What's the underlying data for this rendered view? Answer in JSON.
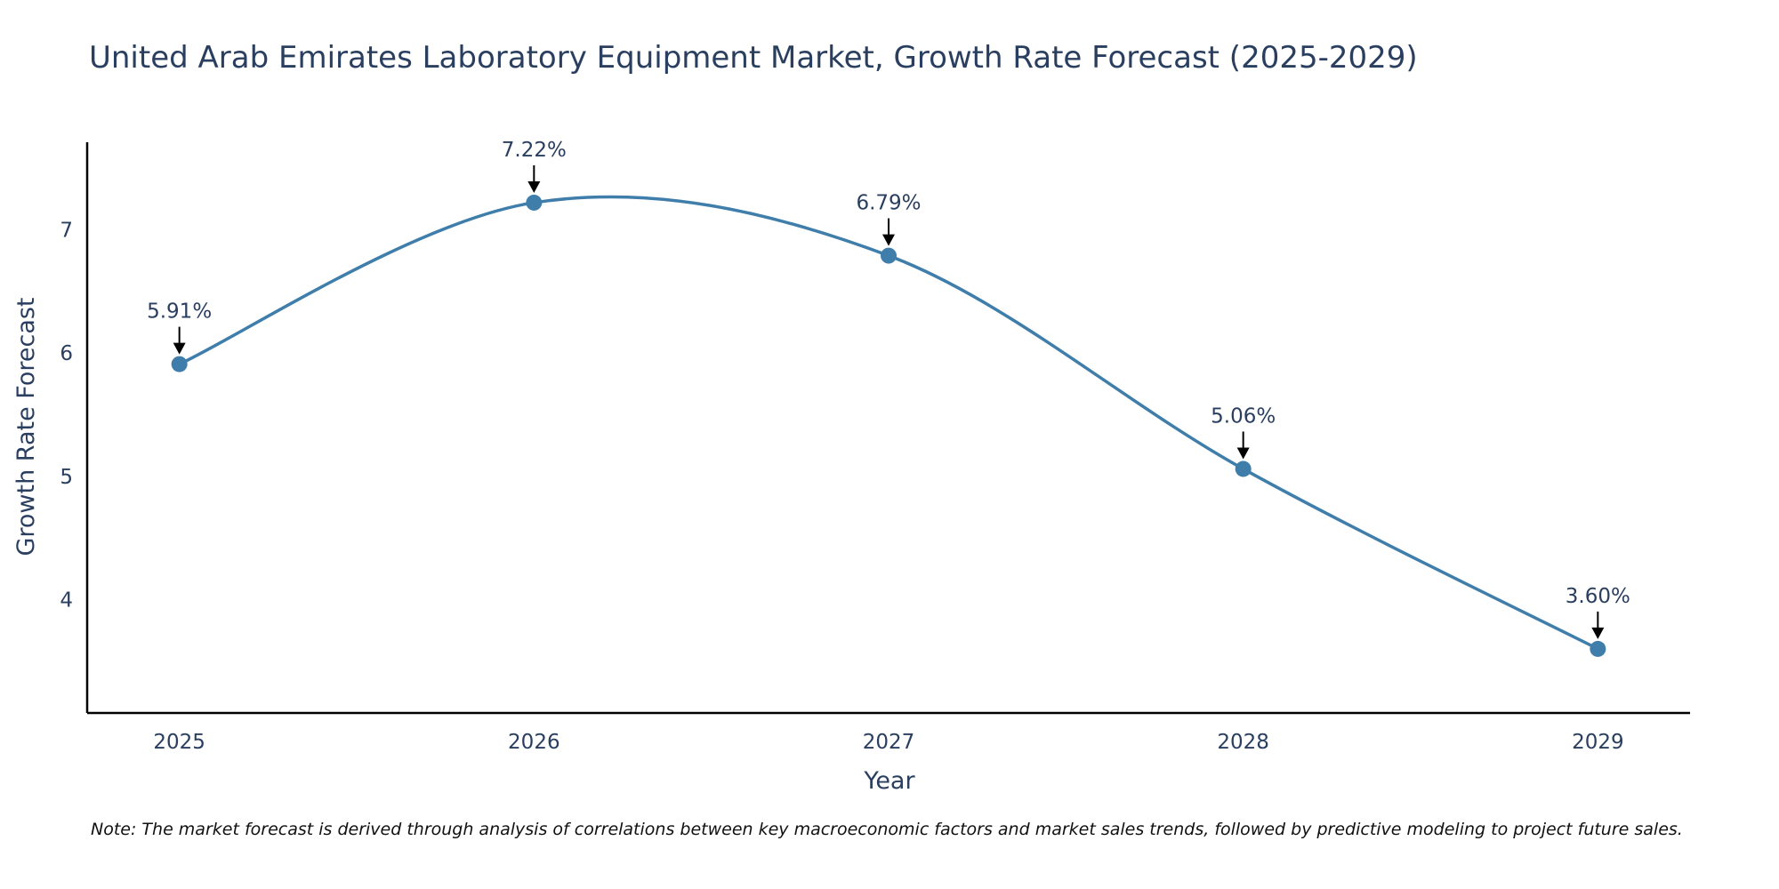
{
  "chart_data": {
    "type": "line",
    "title": "United Arab Emirates Laboratory Equipment Market, Growth Rate Forecast (2025-2029)",
    "xlabel": "Year",
    "ylabel": "Growth Rate Forecast",
    "categories": [
      "2025",
      "2026",
      "2027",
      "2028",
      "2029"
    ],
    "x": [
      2025,
      2026,
      2027,
      2028,
      2029
    ],
    "values": [
      5.91,
      7.22,
      6.79,
      5.06,
      3.6
    ],
    "data_labels": [
      "5.91%",
      "7.22%",
      "6.79%",
      "5.06%",
      "3.60%"
    ],
    "y_ticks": [
      4,
      5,
      6,
      7
    ],
    "ylim": [
      3.08,
      7.71
    ],
    "xlim": [
      2024.74,
      2029.26
    ],
    "line_shape": "spline",
    "grid": false,
    "line_color": "#3f7eab",
    "note": "Note: The market forecast is derived through analysis of correlations between key macroeconomic factors and market sales trends, followed by predictive modeling to project future sales."
  }
}
